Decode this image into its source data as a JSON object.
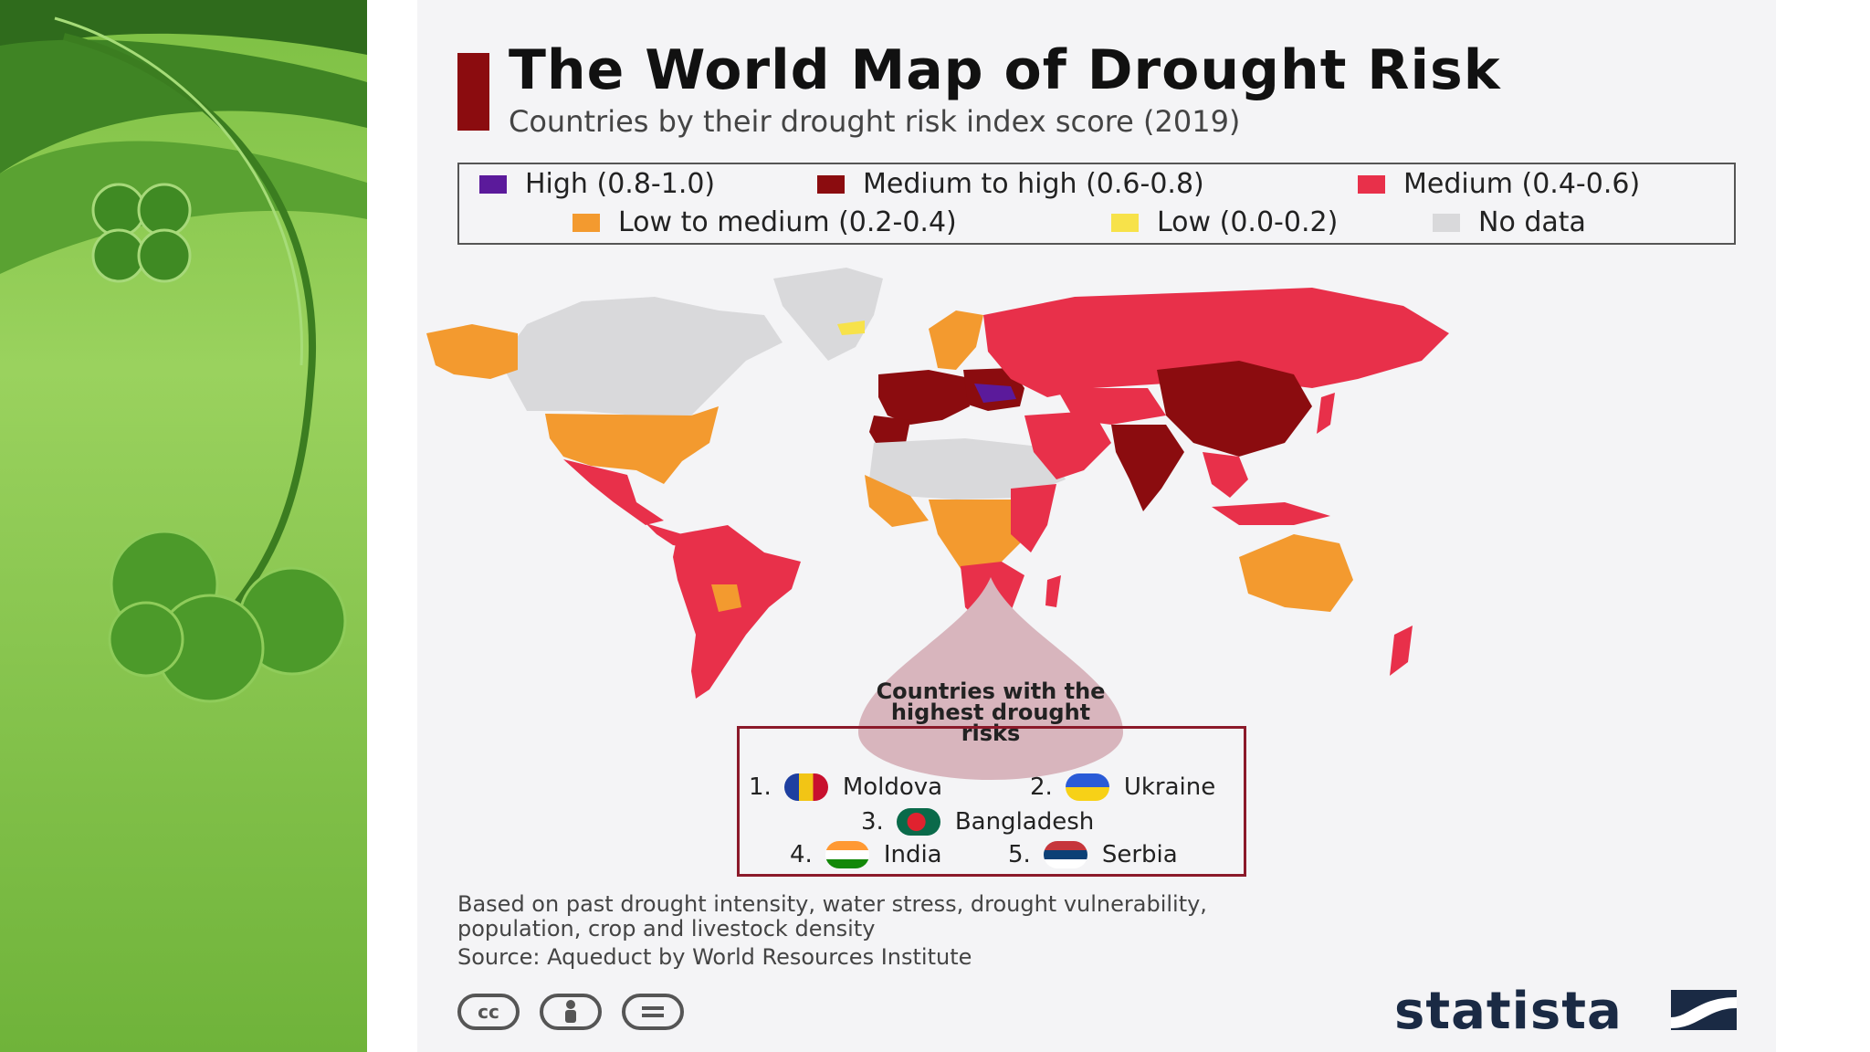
{
  "title": "The World Map of Drought Risk",
  "subtitle": "Countries by their drought risk index score (2019)",
  "legend": [
    {
      "label": "High (0.8-1.0)",
      "color": "#5b1a9b"
    },
    {
      "label": "Medium to high (0.6-0.8)",
      "color": "#8b0c0f"
    },
    {
      "label": "Medium (0.4-0.6)",
      "color": "#e8304a"
    },
    {
      "label": "Low to medium (0.2-0.4)",
      "color": "#f39a2f"
    },
    {
      "label": "Low (0.0-0.2)",
      "color": "#f7e24a"
    },
    {
      "label": "No data",
      "color": "#d9d9db"
    }
  ],
  "highlight": {
    "title": "Countries with the highest drought risks",
    "ranks": [
      {
        "num": "1.",
        "country": "Moldova",
        "flag": "moldova-flag"
      },
      {
        "num": "2.",
        "country": "Ukraine",
        "flag": "ukraine-flag"
      },
      {
        "num": "3.",
        "country": "Bangladesh",
        "flag": "bangladesh-flag"
      },
      {
        "num": "4.",
        "country": "India",
        "flag": "india-flag"
      },
      {
        "num": "5.",
        "country": "Serbia",
        "flag": "serbia-flag"
      }
    ]
  },
  "notes": {
    "line1": "Based on past drought intensity, water stress, drought vulnerability,",
    "line2": "population, crop and livestock density",
    "source": "Source: Aqueduct by World Resources Institute"
  },
  "license_icons": [
    "cc-icon",
    "attribution-icon",
    "no-derivatives-icon"
  ],
  "brand": "statista"
}
